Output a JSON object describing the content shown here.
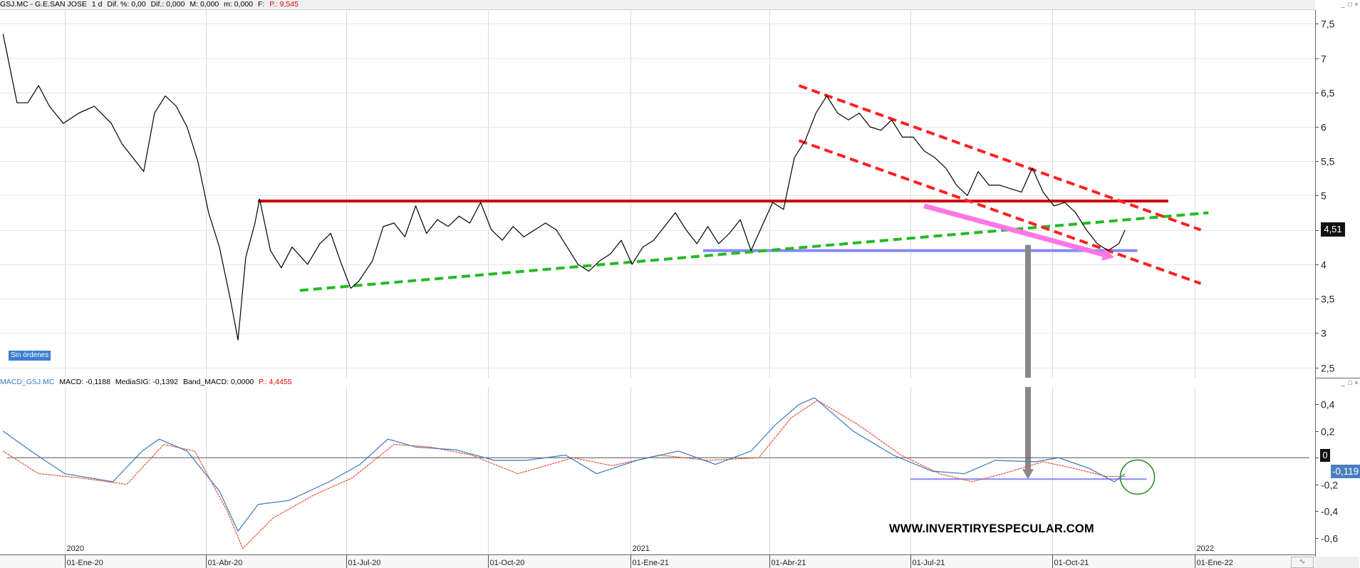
{
  "header": {
    "symbol": "GSJ.MC - G.E.SAN JOSE",
    "timeframe": "1 d",
    "dif_pct": "Dif. %: 0,00",
    "dif": "Dif.: 0,000",
    "max": "M: 0,000",
    "min": "m: 0,000",
    "f": "F:",
    "p": "P.: 9,545"
  },
  "macd_header": {
    "name": "MACD_GSJ.MC",
    "macd": "MACD: -0,1188",
    "signal": "MediaSIG: -0,1392",
    "band": "Band_MACD: 0,0000",
    "p": "P.: 4,4455"
  },
  "labels": {
    "sin_ordenes": "Sin órdenes",
    "watermark": "WWW.INVERTIRYESPECULAR.COM",
    "last_price": "4,51",
    "macd_zero": "0",
    "macd_last": "-0,119",
    "window_buttons": [
      "_",
      "□",
      "×"
    ]
  },
  "colors": {
    "price_line": "#000000",
    "resistance": "#cc0000",
    "channel": "#ff2020",
    "support_trend": "#22bb22",
    "support_line": "#8888ff",
    "pink_arrow": "#ff77e6",
    "grey_arrow": "#888888",
    "macd_line": "#3a78c0",
    "signal_line": "#e85030",
    "circle": "#228822"
  },
  "chart_data": [
    {
      "type": "line",
      "title": "GSJ.MC - G.E.SAN JOSE",
      "ylim": [
        2.35,
        7.7
      ],
      "y_ticks": [
        "7,5",
        "7",
        "6,5",
        "6",
        "5,5",
        "5",
        "4,5",
        "4",
        "3,5",
        "3",
        "2,5"
      ],
      "y_tick_values": [
        7.5,
        7,
        6.5,
        6,
        5.5,
        5,
        4.5,
        4,
        3.5,
        3,
        2.5
      ],
      "x_ticks": [
        "01-Ene-20",
        "01-Abr-20",
        "01-Jul-20",
        "01-Oct-20",
        "01-Ene-21",
        "01-Abr-21",
        "01-Jul-21",
        "01-Oct-21",
        "01-Ene-22"
      ],
      "year_labels": [
        "2020",
        "2021",
        "2022"
      ],
      "x_range": [
        "2019-11-20",
        "2022-03-20"
      ],
      "series": [
        {
          "points": [
            [
              "2019-11-22",
              7.35
            ],
            [
              "2019-12-01",
              6.35
            ],
            [
              "2019-12-08",
              6.35
            ],
            [
              "2019-12-15",
              6.6
            ],
            [
              "2019-12-22",
              6.3
            ],
            [
              "2019-12-31",
              6.05
            ],
            [
              "2020-01-10",
              6.2
            ],
            [
              "2020-01-20",
              6.3
            ],
            [
              "2020-01-31",
              6.05
            ],
            [
              "2020-02-07",
              5.75
            ],
            [
              "2020-02-14",
              5.55
            ],
            [
              "2020-02-21",
              5.35
            ],
            [
              "2020-02-28",
              6.2
            ],
            [
              "2020-03-06",
              6.45
            ],
            [
              "2020-03-13",
              6.3
            ],
            [
              "2020-03-20",
              6.0
            ],
            [
              "2020-03-27",
              5.5
            ],
            [
              "2020-04-03",
              4.75
            ],
            [
              "2020-04-10",
              4.25
            ],
            [
              "2020-04-17",
              3.5
            ],
            [
              "2020-04-22",
              2.9
            ],
            [
              "2020-04-27",
              4.1
            ],
            [
              "2020-05-03",
              4.6
            ],
            [
              "2020-05-06",
              4.95
            ],
            [
              "2020-05-13",
              4.2
            ],
            [
              "2020-05-20",
              3.95
            ],
            [
              "2020-05-27",
              4.25
            ],
            [
              "2020-06-06",
              4.0
            ],
            [
              "2020-06-14",
              4.3
            ],
            [
              "2020-06-21",
              4.45
            ],
            [
              "2020-06-28",
              4.0
            ],
            [
              "2020-07-04",
              3.65
            ],
            [
              "2020-07-09",
              3.75
            ],
            [
              "2020-07-18",
              4.05
            ],
            [
              "2020-07-25",
              4.55
            ],
            [
              "2020-08-01",
              4.6
            ],
            [
              "2020-08-08",
              4.4
            ],
            [
              "2020-08-15",
              4.85
            ],
            [
              "2020-08-22",
              4.45
            ],
            [
              "2020-08-29",
              4.65
            ],
            [
              "2020-09-05",
              4.55
            ],
            [
              "2020-09-12",
              4.7
            ],
            [
              "2020-09-19",
              4.6
            ],
            [
              "2020-09-26",
              4.9
            ],
            [
              "2020-10-03",
              4.5
            ],
            [
              "2020-10-10",
              4.35
            ],
            [
              "2020-10-17",
              4.55
            ],
            [
              "2020-10-24",
              4.4
            ],
            [
              "2020-10-31",
              4.5
            ],
            [
              "2020-11-07",
              4.6
            ],
            [
              "2020-11-14",
              4.5
            ],
            [
              "2020-11-21",
              4.25
            ],
            [
              "2020-11-28",
              4.0
            ],
            [
              "2020-12-05",
              3.9
            ],
            [
              "2020-12-12",
              4.05
            ],
            [
              "2020-12-19",
              4.15
            ],
            [
              "2020-12-26",
              4.35
            ],
            [
              "2021-01-02",
              4.0
            ],
            [
              "2021-01-09",
              4.25
            ],
            [
              "2021-01-16",
              4.35
            ],
            [
              "2021-01-23",
              4.55
            ],
            [
              "2021-01-30",
              4.75
            ],
            [
              "2021-02-06",
              4.5
            ],
            [
              "2021-02-13",
              4.3
            ],
            [
              "2021-02-20",
              4.55
            ],
            [
              "2021-02-27",
              4.3
            ],
            [
              "2021-03-06",
              4.45
            ],
            [
              "2021-03-13",
              4.65
            ],
            [
              "2021-03-20",
              4.2
            ],
            [
              "2021-03-27",
              4.55
            ],
            [
              "2021-04-03",
              4.9
            ],
            [
              "2021-04-10",
              4.8
            ],
            [
              "2021-04-17",
              5.55
            ],
            [
              "2021-04-24",
              5.8
            ],
            [
              "2021-05-01",
              6.2
            ],
            [
              "2021-05-08",
              6.45
            ],
            [
              "2021-05-15",
              6.2
            ],
            [
              "2021-05-22",
              6.1
            ],
            [
              "2021-05-29",
              6.2
            ],
            [
              "2021-06-05",
              6.0
            ],
            [
              "2021-06-12",
              5.95
            ],
            [
              "2021-06-19",
              6.1
            ],
            [
              "2021-06-26",
              5.85
            ],
            [
              "2021-07-03",
              5.85
            ],
            [
              "2021-07-10",
              5.65
            ],
            [
              "2021-07-17",
              5.55
            ],
            [
              "2021-07-24",
              5.4
            ],
            [
              "2021-07-31",
              5.15
            ],
            [
              "2021-08-07",
              5.0
            ],
            [
              "2021-08-14",
              5.35
            ],
            [
              "2021-08-21",
              5.15
            ],
            [
              "2021-08-28",
              5.15
            ],
            [
              "2021-09-04",
              5.1
            ],
            [
              "2021-09-11",
              5.05
            ],
            [
              "2021-09-18",
              5.4
            ],
            [
              "2021-09-25",
              5.05
            ],
            [
              "2021-10-02",
              4.85
            ],
            [
              "2021-10-09",
              4.9
            ],
            [
              "2021-10-16",
              4.75
            ],
            [
              "2021-10-23",
              4.5
            ],
            [
              "2021-10-30",
              4.3
            ],
            [
              "2021-11-06",
              4.2
            ],
            [
              "2021-11-13",
              4.3
            ],
            [
              "2021-11-17",
              4.5
            ]
          ]
        }
      ],
      "annotations": [
        {
          "kind": "resistance",
          "points": [
            [
              "2020-05-05",
              4.92
            ],
            [
              "2021-12-15",
              4.92
            ]
          ]
        },
        {
          "kind": "support",
          "points": [
            [
              "2021-02-17",
              4.2
            ],
            [
              "2021-11-25",
              4.2
            ]
          ]
        },
        {
          "kind": "support-trend",
          "points": [
            [
              "2020-06-01",
              3.62
            ],
            [
              "2022-01-10",
              4.75
            ]
          ]
        },
        {
          "kind": "channel-upper",
          "points": [
            [
              "2021-04-20",
              6.6
            ],
            [
              "2022-01-05",
              4.5
            ]
          ]
        },
        {
          "kind": "channel-lower",
          "points": [
            [
              "2021-04-20",
              5.8
            ],
            [
              "2022-01-05",
              3.72
            ]
          ]
        },
        {
          "kind": "arrow-pink",
          "points": [
            [
              "2021-07-10",
              4.85
            ],
            [
              "2021-11-10",
              4.1
            ]
          ]
        }
      ]
    },
    {
      "type": "line",
      "title": "MACD_GSJ.MC",
      "ylim": [
        -0.72,
        0.52
      ],
      "y_ticks": [
        "0,4",
        "0,2",
        "0",
        "-0,2",
        "-0,4",
        "-0,6"
      ],
      "y_tick_values": [
        0.4,
        0.2,
        0,
        -0.2,
        -0.4,
        -0.6
      ],
      "series": [
        {
          "name": "MACD",
          "points": [
            [
              "2019-11-22",
              0.2
            ],
            [
              "2019-12-10",
              0.05
            ],
            [
              "2020-01-01",
              -0.12
            ],
            [
              "2020-02-01",
              -0.18
            ],
            [
              "2020-02-20",
              0.05
            ],
            [
              "2020-03-02",
              0.14
            ],
            [
              "2020-03-20",
              0.05
            ],
            [
              "2020-04-10",
              -0.25
            ],
            [
              "2020-04-22",
              -0.55
            ],
            [
              "2020-05-05",
              -0.35
            ],
            [
              "2020-05-25",
              -0.32
            ],
            [
              "2020-06-20",
              -0.18
            ],
            [
              "2020-07-10",
              -0.05
            ],
            [
              "2020-07-28",
              0.14
            ],
            [
              "2020-08-15",
              0.08
            ],
            [
              "2020-09-10",
              0.06
            ],
            [
              "2020-10-05",
              -0.02
            ],
            [
              "2020-10-25",
              -0.02
            ],
            [
              "2020-11-20",
              0.02
            ],
            [
              "2020-12-10",
              -0.12
            ],
            [
              "2021-01-05",
              -0.02
            ],
            [
              "2021-02-01",
              0.05
            ],
            [
              "2021-02-25",
              -0.05
            ],
            [
              "2021-03-20",
              0.05
            ],
            [
              "2021-04-05",
              0.25
            ],
            [
              "2021-04-20",
              0.4
            ],
            [
              "2021-04-30",
              0.45
            ],
            [
              "2021-05-25",
              0.2
            ],
            [
              "2021-06-20",
              0.02
            ],
            [
              "2021-07-15",
              -0.1
            ],
            [
              "2021-08-05",
              -0.12
            ],
            [
              "2021-08-25",
              -0.02
            ],
            [
              "2021-09-20",
              -0.03
            ],
            [
              "2021-10-05",
              0.0
            ],
            [
              "2021-10-25",
              -0.08
            ],
            [
              "2021-11-10",
              -0.18
            ],
            [
              "2021-11-17",
              -0.12
            ]
          ]
        },
        {
          "name": "MediaSIG",
          "points": [
            [
              "2019-11-22",
              0.05
            ],
            [
              "2019-12-15",
              -0.12
            ],
            [
              "2020-01-10",
              -0.15
            ],
            [
              "2020-02-10",
              -0.2
            ],
            [
              "2020-03-05",
              0.1
            ],
            [
              "2020-03-25",
              0.05
            ],
            [
              "2020-04-15",
              -0.4
            ],
            [
              "2020-04-25",
              -0.68
            ],
            [
              "2020-05-15",
              -0.45
            ],
            [
              "2020-06-10",
              -0.28
            ],
            [
              "2020-07-05",
              -0.15
            ],
            [
              "2020-08-01",
              0.1
            ],
            [
              "2020-08-25",
              0.08
            ],
            [
              "2020-09-20",
              0.02
            ],
            [
              "2020-10-20",
              -0.12
            ],
            [
              "2020-11-25",
              0.0
            ],
            [
              "2020-12-20",
              -0.06
            ],
            [
              "2021-01-20",
              0.02
            ],
            [
              "2021-02-20",
              -0.02
            ],
            [
              "2021-03-25",
              0.0
            ],
            [
              "2021-04-15",
              0.3
            ],
            [
              "2021-05-02",
              0.43
            ],
            [
              "2021-05-28",
              0.25
            ],
            [
              "2021-06-25",
              0.02
            ],
            [
              "2021-07-20",
              -0.12
            ],
            [
              "2021-08-10",
              -0.18
            ],
            [
              "2021-08-30",
              -0.12
            ],
            [
              "2021-09-25",
              -0.03
            ],
            [
              "2021-10-15",
              -0.08
            ],
            [
              "2021-11-05",
              -0.14
            ],
            [
              "2021-11-17",
              -0.14
            ]
          ]
        }
      ],
      "annotations": [
        {
          "kind": "zero-line",
          "points": [
            [
              "2019-11-22",
              0
            ],
            [
              "2022-03-20",
              0
            ]
          ]
        },
        {
          "kind": "support",
          "points": [
            [
              "2021-07-01",
              -0.16
            ],
            [
              "2021-12-01",
              -0.16
            ]
          ]
        },
        {
          "kind": "circle",
          "points": [
            [
              "2021-11-25",
              -0.145
            ]
          ]
        }
      ]
    }
  ]
}
